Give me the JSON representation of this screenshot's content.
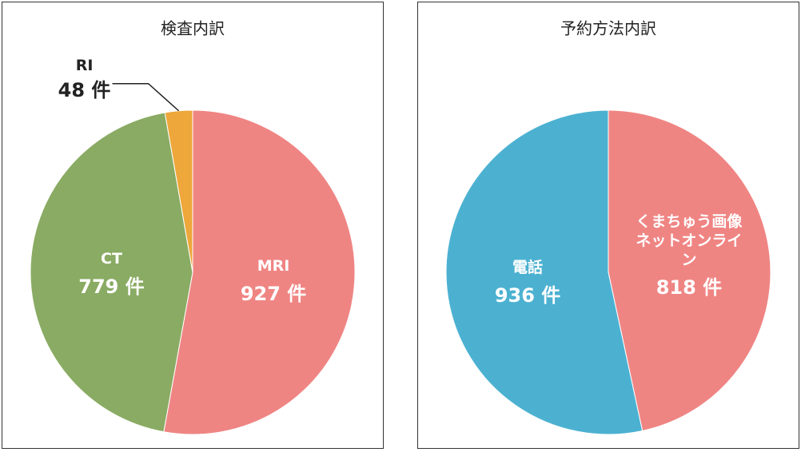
{
  "chart_data": [
    {
      "type": "pie",
      "title": "検査内訳",
      "categories": [
        "MRI",
        "CT",
        "RI"
      ],
      "values": [
        927,
        779,
        48
      ],
      "value_labels": [
        "927 件",
        "779 件",
        "48 件"
      ],
      "colors": [
        "#ef8583",
        "#8aab63",
        "#eda73a"
      ]
    },
    {
      "type": "pie",
      "title": "予約方法内訳",
      "categories": [
        "くまちゅう画像\nネットオンライン",
        "電話"
      ],
      "values": [
        818,
        936
      ],
      "value_labels": [
        "818 件",
        "936 件"
      ],
      "colors": [
        "#ef8583",
        "#4cb1d1"
      ]
    }
  ]
}
